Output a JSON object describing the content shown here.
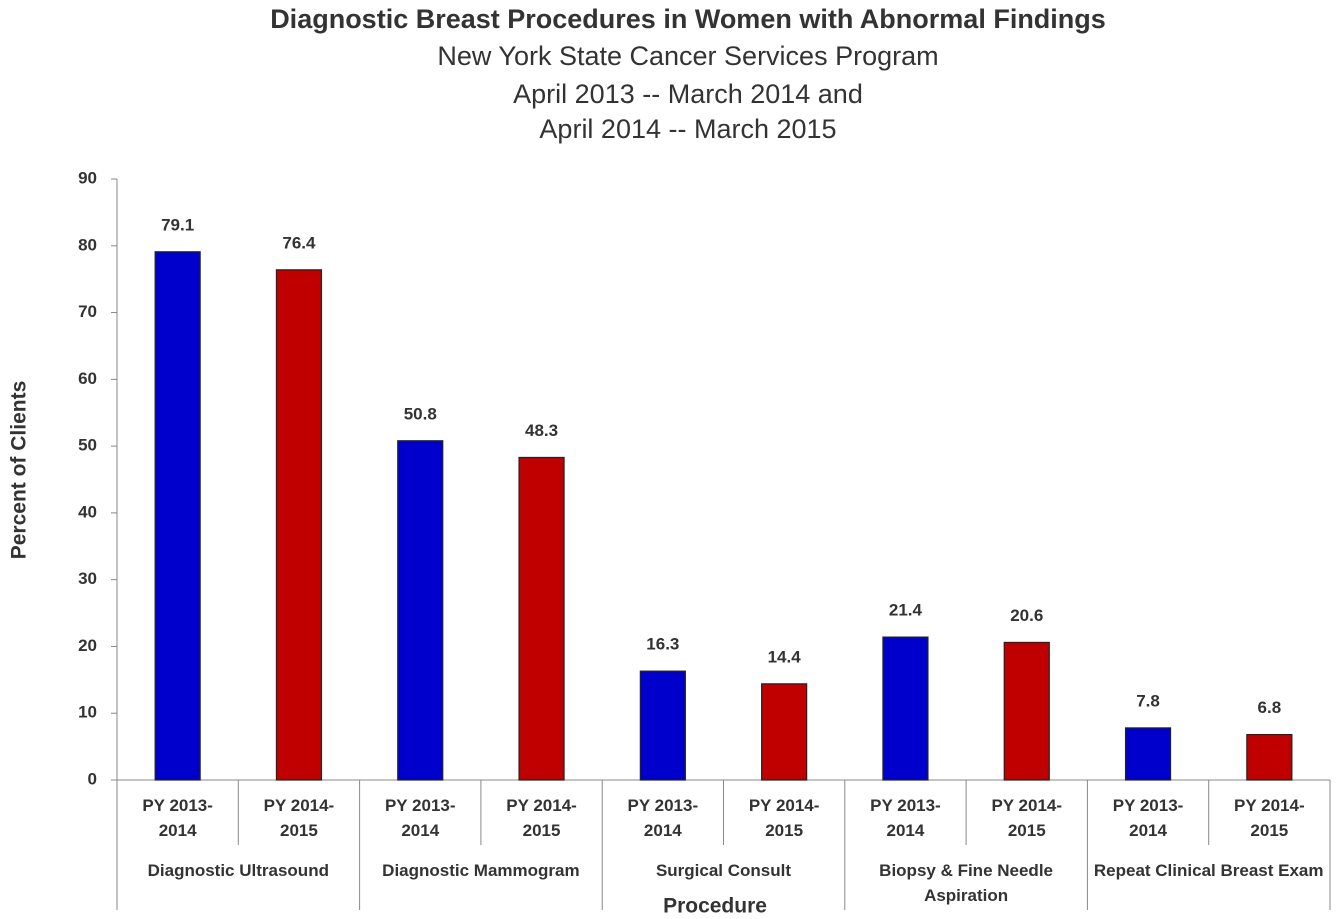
{
  "chart_data": {
    "type": "bar",
    "title": "Diagnostic Breast Procedures in Women with Abnormal Findings",
    "subtitle": [
      "New York State Cancer Services Program",
      "April 2013 -- March 2014 and",
      "April 2014 -- March 2015"
    ],
    "x_label": "Procedure",
    "y_label": "Percent of Clients",
    "categories": [
      "Diagnostic Ultrasound",
      "Diagnostic Mammogram",
      "Surgical Consult",
      "Biopsy & Fine Needle Aspiration",
      "Repeat Clinical Breast Exam"
    ],
    "series": [
      {
        "name": "PY 2013-2014",
        "color": "#0000cc",
        "values": [
          79.1,
          50.8,
          16.3,
          21.4,
          7.8
        ]
      },
      {
        "name": "PY 2014-2015",
        "color": "#c00000",
        "values": [
          76.4,
          48.3,
          14.4,
          20.6,
          6.8
        ]
      }
    ],
    "ylim": [
      0,
      90
    ],
    "yticks": [
      0,
      10,
      20,
      30,
      40,
      50,
      60,
      70,
      80,
      90
    ],
    "grid": false
  }
}
